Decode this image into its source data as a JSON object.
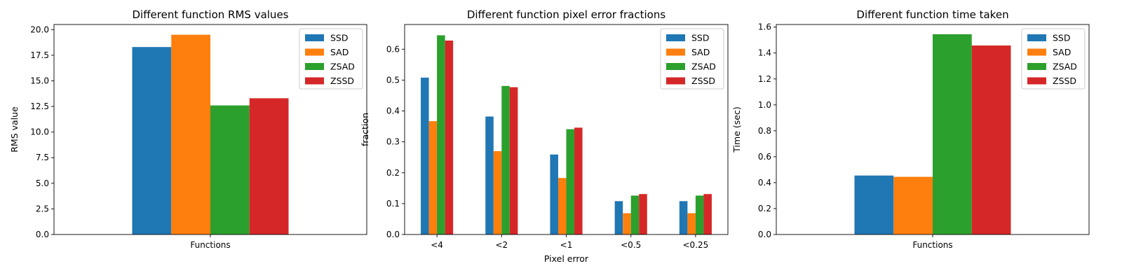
{
  "figure": {
    "legend_placement": "upper right",
    "grid": false
  },
  "chart_data": [
    {
      "type": "bar",
      "title": "Different function RMS values",
      "xlabel": "",
      "ylabel": "RMS value",
      "categories": [
        "Functions"
      ],
      "ylim": [
        0,
        20.5
      ],
      "yticks": [
        0,
        2.5,
        5,
        7.5,
        10,
        12.5,
        15,
        17.5,
        20
      ],
      "ytick_labels": [
        "0.0",
        "2.5",
        "5.0",
        "7.5",
        "10.0",
        "12.5",
        "15.0",
        "17.5",
        "20.0"
      ],
      "series": [
        {
          "name": "SSD",
          "color": "#1f77b4",
          "values": [
            18.3
          ]
        },
        {
          "name": "SAD",
          "color": "#ff7f0e",
          "values": [
            19.5
          ]
        },
        {
          "name": "ZSAD",
          "color": "#2ca02c",
          "values": [
            12.6
          ]
        },
        {
          "name": "ZSSD",
          "color": "#d62728",
          "values": [
            13.3
          ]
        }
      ]
    },
    {
      "type": "bar",
      "title": "Different function pixel error fractions",
      "xlabel": "Pixel error",
      "ylabel": "fraction",
      "categories": [
        "<4",
        "<2",
        "<1",
        "<0.5",
        "<0.25"
      ],
      "ylim": [
        0,
        0.68
      ],
      "yticks": [
        0,
        0.1,
        0.2,
        0.3,
        0.4,
        0.5,
        0.6
      ],
      "ytick_labels": [
        "0.0",
        "0.1",
        "0.2",
        "0.3",
        "0.4",
        "0.5",
        "0.6"
      ],
      "series": [
        {
          "name": "SSD",
          "color": "#1f77b4",
          "values": [
            0.508,
            0.382,
            0.259,
            0.108,
            0.108
          ]
        },
        {
          "name": "SAD",
          "color": "#ff7f0e",
          "values": [
            0.367,
            0.27,
            0.183,
            0.069,
            0.069
          ]
        },
        {
          "name": "ZSAD",
          "color": "#2ca02c",
          "values": [
            0.645,
            0.481,
            0.341,
            0.126,
            0.126
          ]
        },
        {
          "name": "ZSSD",
          "color": "#d62728",
          "values": [
            0.628,
            0.477,
            0.346,
            0.131,
            0.131
          ]
        }
      ]
    },
    {
      "type": "bar",
      "title": "Different function time taken",
      "xlabel": "",
      "ylabel": "Time (sec)",
      "categories": [
        "Functions"
      ],
      "ylim": [
        0,
        1.62
      ],
      "yticks": [
        0,
        0.2,
        0.4,
        0.6,
        0.8,
        1.0,
        1.2,
        1.4,
        1.6
      ],
      "ytick_labels": [
        "0.0",
        "0.2",
        "0.4",
        "0.6",
        "0.8",
        "1.0",
        "1.2",
        "1.4",
        "1.6"
      ],
      "series": [
        {
          "name": "SSD",
          "color": "#1f77b4",
          "values": [
            0.455
          ]
        },
        {
          "name": "SAD",
          "color": "#ff7f0e",
          "values": [
            0.445
          ]
        },
        {
          "name": "ZSAD",
          "color": "#2ca02c",
          "values": [
            1.545
          ]
        },
        {
          "name": "ZSSD",
          "color": "#d62728",
          "values": [
            1.458
          ]
        }
      ]
    }
  ]
}
